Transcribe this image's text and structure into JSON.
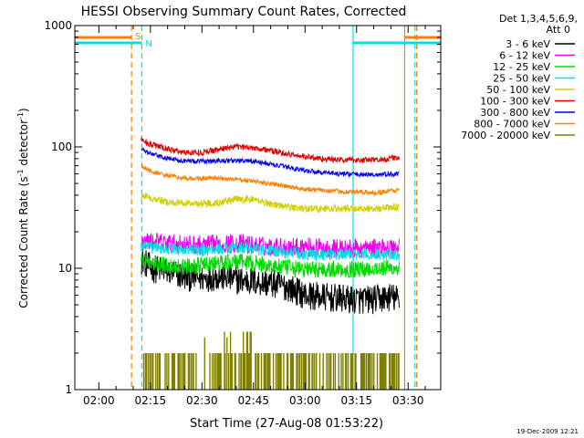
{
  "chart_data": {
    "type": "line",
    "title": "HESSI Observing Summary Count Rates, Corrected",
    "xlabel": "Start Time (27-Aug-08 01:53:22)",
    "ylabel_main": "Corrected Count Rate (s",
    "ylabel_sup1": "-1",
    "ylabel_mid": " detector",
    "ylabel_sup2": "-1",
    "ylabel_end": ")",
    "yscale": "log",
    "ylim": [
      1,
      1000
    ],
    "y_ticks": [
      {
        "value": 1,
        "label": "1"
      },
      {
        "value": 10,
        "label": "10"
      },
      {
        "value": 100,
        "label": "100"
      },
      {
        "value": 1000,
        "label": "1000"
      }
    ],
    "xlim_minutes": [
      -7,
      99.5
    ],
    "x_ticks": [
      {
        "minutes": 0,
        "label": "02:00"
      },
      {
        "minutes": 15,
        "label": "02:15"
      },
      {
        "minutes": 30,
        "label": "02:30"
      },
      {
        "minutes": 45,
        "label": "02:45"
      },
      {
        "minutes": 60,
        "label": "03:00"
      },
      {
        "minutes": 75,
        "label": "03:15"
      },
      {
        "minutes": 90,
        "label": "03:30"
      }
    ],
    "legend_header": [
      "Det 1,3,4,5,6,9,",
      "Att 0"
    ],
    "legend_position": "right",
    "series": [
      {
        "name": "3 - 6 keV",
        "color": "#000000",
        "data_span": [
          12.3,
          87.5
        ],
        "knots": [
          [
            12.3,
            12
          ],
          [
            15,
            10
          ],
          [
            20,
            9.5
          ],
          [
            25,
            8.5
          ],
          [
            30,
            8.3
          ],
          [
            35,
            8.6
          ],
          [
            40,
            8
          ],
          [
            45,
            7.8
          ],
          [
            50,
            7.5
          ],
          [
            55,
            7
          ],
          [
            60,
            6
          ],
          [
            65,
            5.8
          ],
          [
            70,
            5.6
          ],
          [
            75,
            5.5
          ],
          [
            80,
            5.5
          ],
          [
            85,
            5.8
          ],
          [
            87.3,
            5.5
          ],
          [
            87.6,
            3
          ]
        ],
        "noise": 0.12
      },
      {
        "name": "6 - 12 keV",
        "color": "#ee00ee",
        "data_span": [
          12.3,
          87.5
        ],
        "knots": [
          [
            12.3,
            17
          ],
          [
            20,
            16
          ],
          [
            30,
            15.5
          ],
          [
            40,
            16
          ],
          [
            50,
            15
          ],
          [
            60,
            15
          ],
          [
            70,
            14.5
          ],
          [
            80,
            14.5
          ],
          [
            87.3,
            15
          ]
        ],
        "noise": 0.08
      },
      {
        "name": "12 - 25 keV",
        "color": "#00dd00",
        "data_span": [
          12.3,
          87.5
        ],
        "knots": [
          [
            12.3,
            12.5
          ],
          [
            15,
            11
          ],
          [
            20,
            10.5
          ],
          [
            25,
            10.3
          ],
          [
            30,
            10.6
          ],
          [
            35,
            11
          ],
          [
            40,
            11.3
          ],
          [
            45,
            11
          ],
          [
            50,
            10.5
          ],
          [
            55,
            10
          ],
          [
            60,
            9.8
          ],
          [
            65,
            9.8
          ],
          [
            70,
            9.8
          ],
          [
            75,
            9.8
          ],
          [
            80,
            10
          ],
          [
            87.3,
            10
          ]
        ],
        "noise": 0.07
      },
      {
        "name": "25 - 50 keV",
        "color": "#00e0e0",
        "data_span": [
          12.3,
          87.5
        ],
        "knots": [
          [
            12.3,
            15
          ],
          [
            20,
            14.5
          ],
          [
            30,
            14
          ],
          [
            40,
            15
          ],
          [
            50,
            14
          ],
          [
            60,
            13
          ],
          [
            70,
            13
          ],
          [
            80,
            13
          ],
          [
            87.3,
            13
          ]
        ],
        "noise": 0.05
      },
      {
        "name": "50 - 100 keV",
        "color": "#d0d000",
        "data_span": [
          12.3,
          87.5
        ],
        "knots": [
          [
            12.3,
            40
          ],
          [
            20,
            35
          ],
          [
            30,
            34
          ],
          [
            35,
            35
          ],
          [
            40,
            37
          ],
          [
            45,
            37
          ],
          [
            50,
            34
          ],
          [
            55,
            32
          ],
          [
            60,
            31
          ],
          [
            70,
            31
          ],
          [
            80,
            31
          ],
          [
            87.3,
            32
          ]
        ],
        "noise": 0.03
      },
      {
        "name": "100 - 300 keV",
        "color": "#e00000",
        "data_span": [
          12.3,
          87.5
        ],
        "knots": [
          [
            12.3,
            115
          ],
          [
            15,
            105
          ],
          [
            20,
            96
          ],
          [
            25,
            90
          ],
          [
            30,
            90
          ],
          [
            35,
            96
          ],
          [
            40,
            100
          ],
          [
            45,
            99
          ],
          [
            50,
            93
          ],
          [
            55,
            87
          ],
          [
            60,
            83
          ],
          [
            65,
            80
          ],
          [
            70,
            78
          ],
          [
            75,
            78
          ],
          [
            80,
            78
          ],
          [
            87.3,
            82
          ]
        ],
        "noise": 0.025
      },
      {
        "name": "300 - 800 keV",
        "color": "#0000ee",
        "data_span": [
          12.3,
          87.5
        ],
        "knots": [
          [
            12.3,
            95
          ],
          [
            15,
            88
          ],
          [
            20,
            80
          ],
          [
            25,
            77
          ],
          [
            30,
            76
          ],
          [
            35,
            77
          ],
          [
            40,
            77
          ],
          [
            45,
            76
          ],
          [
            50,
            72
          ],
          [
            55,
            68
          ],
          [
            60,
            64
          ],
          [
            65,
            62
          ],
          [
            70,
            60
          ],
          [
            80,
            59
          ],
          [
            87.3,
            60
          ]
        ],
        "noise": 0.02
      },
      {
        "name": "800 - 7000 keV",
        "color": "#ff8000",
        "data_span": [
          12.3,
          87.5
        ],
        "knots": [
          [
            12.3,
            70
          ],
          [
            15,
            63
          ],
          [
            20,
            58
          ],
          [
            25,
            55
          ],
          [
            30,
            55
          ],
          [
            35,
            55
          ],
          [
            40,
            54
          ],
          [
            45,
            52
          ],
          [
            50,
            50
          ],
          [
            55,
            47
          ],
          [
            60,
            45
          ],
          [
            70,
            43
          ],
          [
            80,
            42
          ],
          [
            87.3,
            44
          ]
        ],
        "noise": 0.02
      },
      {
        "name": "7000 - 20000 keV",
        "color": "#808000",
        "data_span": [
          12.3,
          87.5
        ],
        "knots": [
          [
            12.3,
            1.8
          ],
          [
            87.3,
            1.8
          ]
        ],
        "noise": 0
      }
    ],
    "flag_markers": [
      {
        "label": "S",
        "color": "#ff8000",
        "x_minutes": 9.5,
        "level": 1.0
      },
      {
        "label": "N",
        "color": "#00e0e0",
        "x_minutes": 12.5,
        "level": 0.0
      }
    ],
    "flag_bars": [
      {
        "color": "#ff8000",
        "from_minutes": -7,
        "to_minutes": 9.5
      },
      {
        "color": "#ff8000",
        "from_minutes": 89.0,
        "to_minutes": 99.5
      },
      {
        "color": "#00e0e0",
        "from_minutes": -7,
        "to_minutes": 12.5
      },
      {
        "color": "#00e0e0",
        "from_minutes": 74.0,
        "to_minutes": 99.5
      }
    ],
    "vlines": [
      {
        "x_minutes": 74.0,
        "color": "#00e0e0",
        "dashed": false
      },
      {
        "x_minutes": 89.0,
        "color": "#ff8000",
        "dashed": false
      },
      {
        "x_minutes": 9.5,
        "color": "#ff8000",
        "dashed": true
      },
      {
        "x_minutes": 12.5,
        "color": "#00e0e0",
        "dashed": true
      },
      {
        "x_minutes": 92.0,
        "color": "#00e0e0",
        "dashed": true
      },
      {
        "x_minutes": 92.5,
        "color": "#ff8000",
        "dashed": true
      }
    ]
  },
  "footer": {
    "timestamp": "19-Dec-2009 12:21"
  }
}
